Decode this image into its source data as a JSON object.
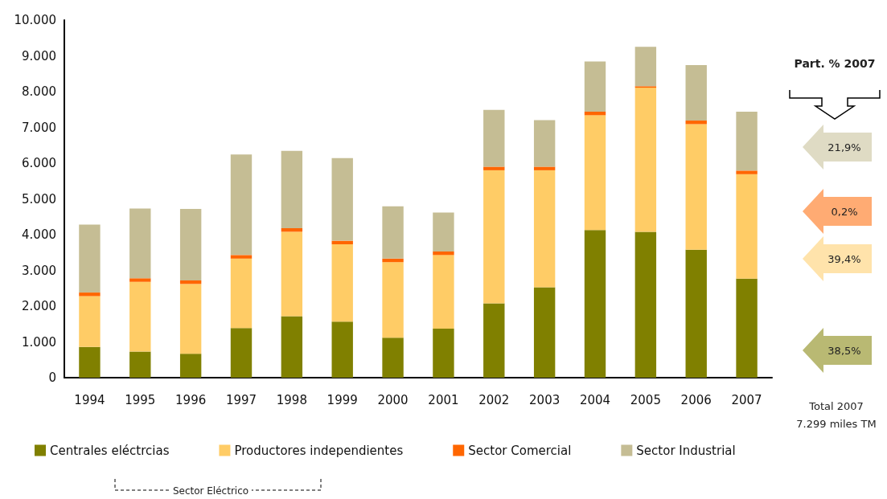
{
  "chart_data": {
    "type": "bar",
    "stacked": true,
    "categories": [
      "1994",
      "1995",
      "1996",
      "1997",
      "1998",
      "1999",
      "2000",
      "2001",
      "2002",
      "2003",
      "2004",
      "2005",
      "2006",
      "2007"
    ],
    "series": [
      {
        "name": "Centrales eléctrcias",
        "color": "#808000",
        "values": [
          860,
          730,
          670,
          1390,
          1720,
          1570,
          1120,
          1370,
          2080,
          2530,
          4130,
          4080,
          3580,
          2770
        ]
      },
      {
        "name": "Productores independientes",
        "color": "#ffcc66",
        "values": [
          1420,
          1950,
          1950,
          1940,
          2360,
          2160,
          2110,
          2060,
          3720,
          3270,
          3210,
          4030,
          3510,
          2920
        ]
      },
      {
        "name": "Sector Comercial",
        "color": "#ff6600",
        "values": [
          100,
          100,
          100,
          100,
          100,
          100,
          100,
          100,
          100,
          100,
          100,
          40,
          100,
          100
        ]
      },
      {
        "name": "Sector Industrial",
        "color": "#c5bd94",
        "values": [
          1900,
          1950,
          2000,
          2810,
          2160,
          2310,
          1460,
          1090,
          1590,
          1300,
          1400,
          1100,
          1550,
          1650
        ]
      }
    ],
    "ylim": [
      0,
      10000
    ],
    "yticks": [
      0,
      {
        "value": 1000,
        "label": "1.000"
      },
      {
        "value": 2000,
        "label": "2.000"
      },
      {
        "value": 3000,
        "label": "3.000"
      },
      {
        "value": 4000,
        "label": "4.000"
      },
      {
        "value": 5000,
        "label": "5.000"
      },
      {
        "value": 6000,
        "label": "6.000"
      },
      {
        "value": 7000,
        "label": "7.000"
      },
      {
        "value": 8000,
        "label": "8.000"
      },
      {
        "value": 9000,
        "label": "9.000"
      },
      {
        "value": 10000,
        "label": "10.000"
      }
    ],
    "grid": false,
    "legend": "bottom",
    "annotations": [
      "Part. % 2007",
      "21,9%",
      "0,2%",
      "39,4%",
      "38,5%",
      "Total  2007",
      "7.299 miles TM",
      "Sector Eléctrico"
    ]
  }
}
